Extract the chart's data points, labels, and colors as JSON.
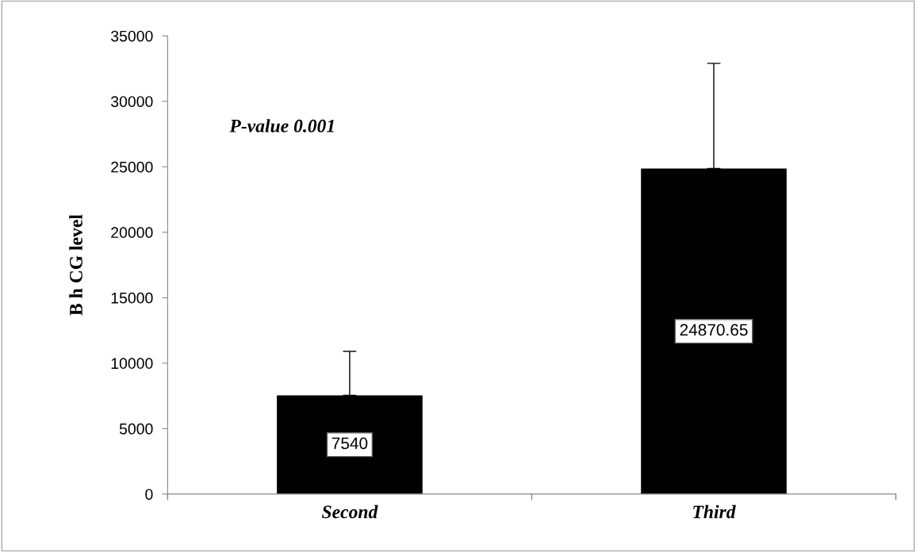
{
  "chart_data": {
    "type": "bar",
    "ylabel": "B h CG level",
    "categories": [
      "Second",
      "Third"
    ],
    "values": [
      7540,
      24870.65
    ],
    "errors": [
      [
        7540,
        10900
      ],
      [
        24870.65,
        32900
      ]
    ],
    "color": "#000000",
    "ylim": [
      0,
      35000
    ],
    "yticks": [
      0,
      5000,
      10000,
      15000,
      20000,
      25000,
      30000,
      35000
    ],
    "grid": false,
    "data_labels": true,
    "annotations": [
      "P-value 0.001"
    ]
  }
}
